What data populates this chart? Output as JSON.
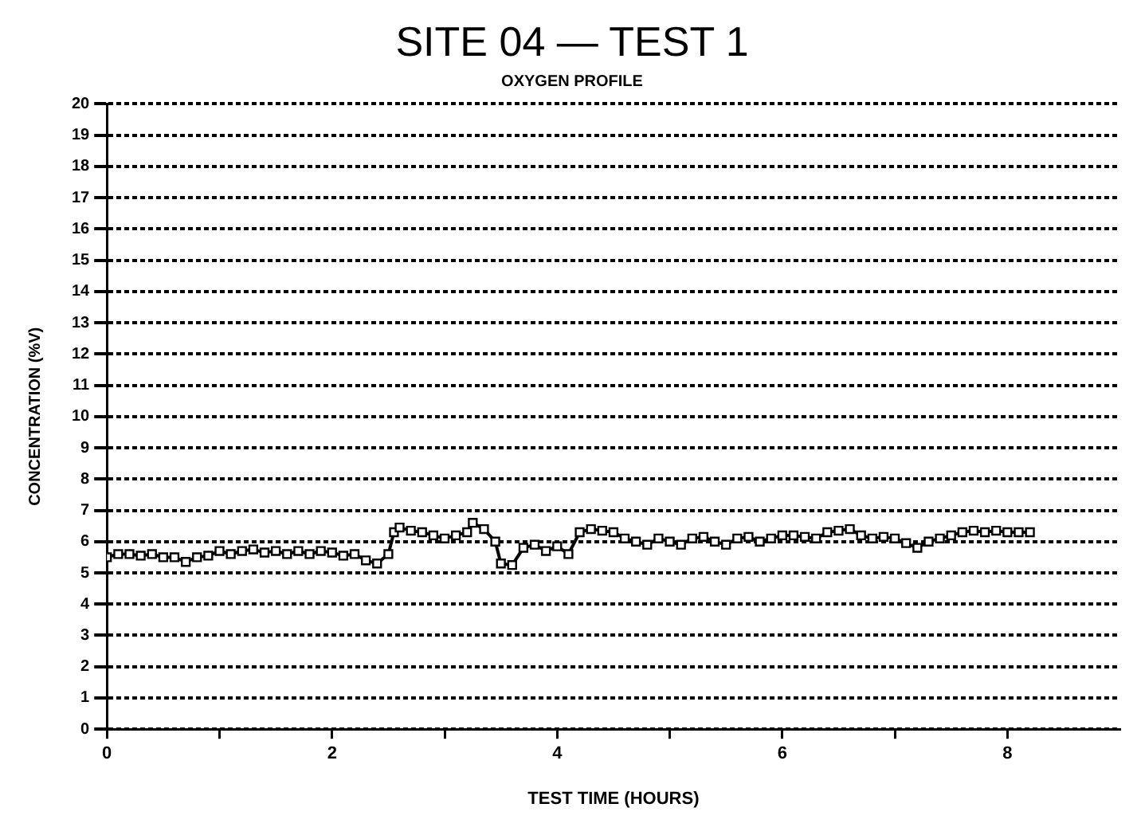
{
  "chart_data": {
    "type": "line",
    "title": "SITE 04 — TEST 1",
    "subtitle": "OXYGEN PROFILE",
    "xlabel": "TEST TIME (HOURS)",
    "ylabel": "CONCENTRATION (%V)",
    "x": [
      0.0,
      0.1,
      0.2,
      0.3,
      0.4,
      0.5,
      0.6,
      0.7,
      0.8,
      0.9,
      1.0,
      1.1,
      1.2,
      1.3,
      1.4,
      1.5,
      1.6,
      1.7,
      1.8,
      1.9,
      2.0,
      2.1,
      2.2,
      2.3,
      2.4,
      2.5,
      2.55,
      2.6,
      2.7,
      2.8,
      2.9,
      3.0,
      3.1,
      3.2,
      3.25,
      3.35,
      3.45,
      3.5,
      3.6,
      3.7,
      3.8,
      3.9,
      4.0,
      4.1,
      4.2,
      4.3,
      4.4,
      4.5,
      4.6,
      4.7,
      4.8,
      4.9,
      5.0,
      5.1,
      5.2,
      5.3,
      5.4,
      5.5,
      5.6,
      5.7,
      5.8,
      5.9,
      6.0,
      6.1,
      6.2,
      6.3,
      6.4,
      6.5,
      6.6,
      6.7,
      6.8,
      6.9,
      7.0,
      7.1,
      7.2,
      7.3,
      7.4,
      7.5,
      7.6,
      7.7,
      7.8,
      7.9,
      8.0,
      8.1,
      8.2
    ],
    "series": [
      {
        "color": "#000000",
        "values": [
          5.5,
          5.6,
          5.6,
          5.55,
          5.6,
          5.5,
          5.5,
          5.35,
          5.5,
          5.55,
          5.7,
          5.6,
          5.7,
          5.75,
          5.65,
          5.7,
          5.6,
          5.7,
          5.6,
          5.7,
          5.65,
          5.55,
          5.6,
          5.4,
          5.3,
          5.6,
          6.3,
          6.45,
          6.35,
          6.3,
          6.2,
          6.1,
          6.2,
          6.3,
          6.6,
          6.4,
          6.0,
          5.3,
          5.25,
          5.8,
          5.9,
          5.7,
          5.85,
          5.6,
          6.3,
          6.4,
          6.35,
          6.3,
          6.1,
          6.0,
          5.9,
          6.1,
          6.0,
          5.9,
          6.1,
          6.15,
          6.0,
          5.9,
          6.1,
          6.15,
          6.0,
          6.1,
          6.2,
          6.2,
          6.15,
          6.1,
          6.3,
          6.35,
          6.4,
          6.2,
          6.1,
          6.15,
          6.1,
          5.95,
          5.8,
          6.0,
          6.1,
          6.2,
          6.3,
          6.35,
          6.3,
          6.35,
          6.3,
          6.3,
          6.3
        ]
      }
    ],
    "xlim": [
      0,
      9
    ],
    "xticks": [
      0,
      {
        "value": 1,
        "label": null
      },
      2,
      {
        "value": 3,
        "label": null
      },
      4,
      {
        "value": 5,
        "label": null
      },
      6,
      {
        "value": 7,
        "label": null
      },
      8
    ],
    "ylim": [
      0,
      20
    ],
    "yticks": [
      0,
      1,
      2,
      3,
      4,
      5,
      6,
      7,
      8,
      9,
      10,
      11,
      12,
      13,
      14,
      15,
      16,
      17,
      18,
      19,
      20
    ],
    "grid": "y",
    "legend": false,
    "marker": "square",
    "line_style": "solid"
  }
}
